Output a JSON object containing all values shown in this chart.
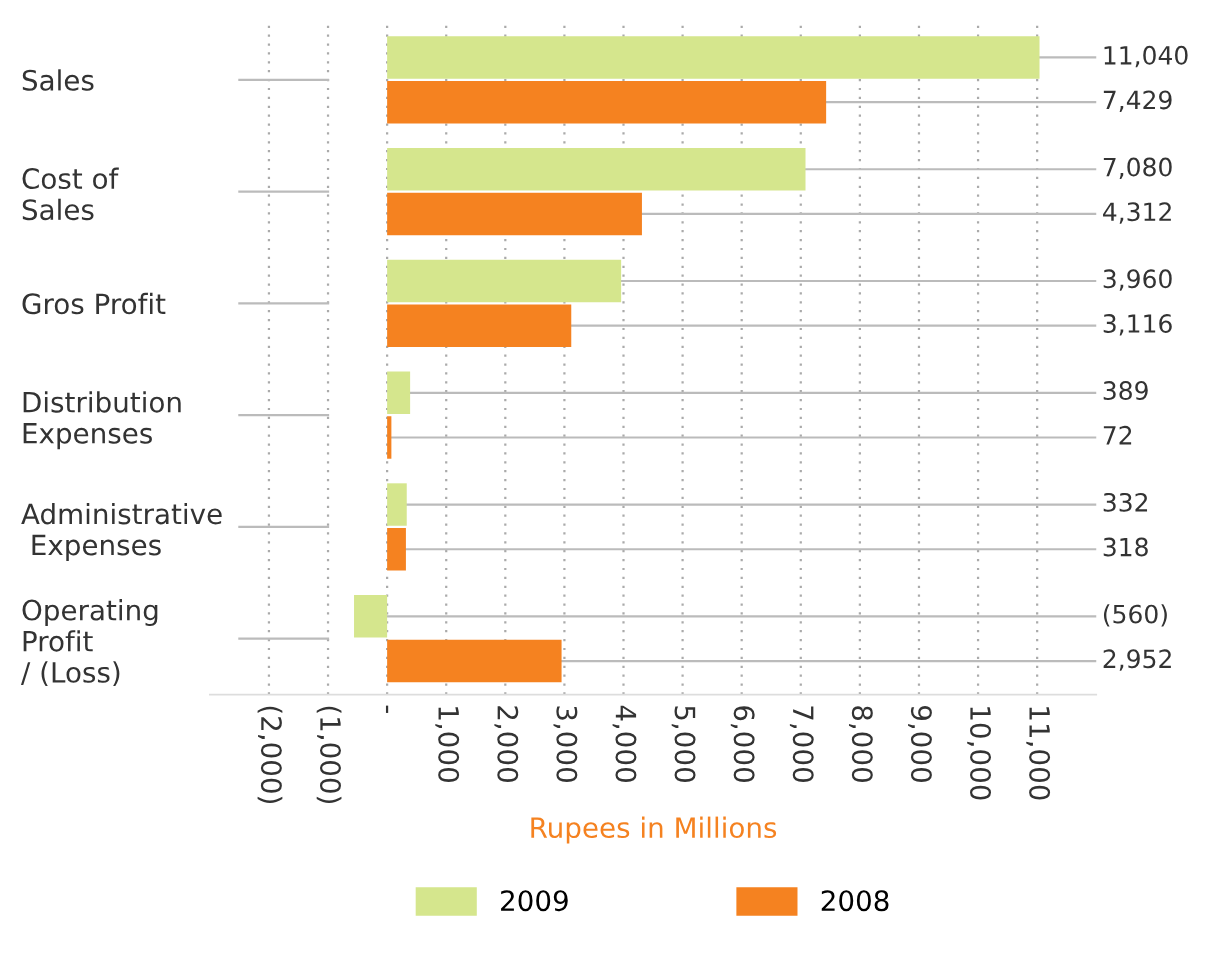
{
  "chart_data": {
    "type": "bar",
    "orientation": "horizontal",
    "xlabel": "Rupees in Millions",
    "categories": [
      "Sales",
      "Cost of\nSales",
      "Gros Profit",
      "Distribution\nExpenses",
      "Administrative\n Expenses",
      "Operating\nProfit\n/ (Loss)"
    ],
    "series": [
      {
        "name": "2009",
        "color": "#d5e68d",
        "values": [
          11040,
          7080,
          3960,
          389,
          332,
          -560
        ],
        "value_labels": [
          "11,040",
          "7,080",
          "3,960",
          "389",
          "332",
          "(560)"
        ]
      },
      {
        "name": "2008",
        "color": "#f58220",
        "values": [
          7429,
          4312,
          3116,
          72,
          318,
          2952
        ],
        "value_labels": [
          "7,429",
          "4,312",
          "3,116",
          "72",
          "318",
          "2,952"
        ]
      }
    ],
    "xlim": [
      -3000,
      12000
    ],
    "xticks": [
      {
        "value": -2000,
        "label": "(2,000)"
      },
      {
        "value": -1000,
        "label": "(1,000)"
      },
      {
        "value": 0,
        "label": "-"
      },
      {
        "value": 1000,
        "label": "1,000"
      },
      {
        "value": 2000,
        "label": "2,000"
      },
      {
        "value": 3000,
        "label": "3,000"
      },
      {
        "value": 4000,
        "label": "4,000"
      },
      {
        "value": 5000,
        "label": "5,000"
      },
      {
        "value": 6000,
        "label": "6,000"
      },
      {
        "value": 7000,
        "label": "7,000"
      },
      {
        "value": 8000,
        "label": "8,000"
      },
      {
        "value": 9000,
        "label": "9,000"
      },
      {
        "value": 10000,
        "label": "10,000"
      },
      {
        "value": 11000,
        "label": "11,000"
      }
    ],
    "grid": "x",
    "legend": "bottom"
  }
}
